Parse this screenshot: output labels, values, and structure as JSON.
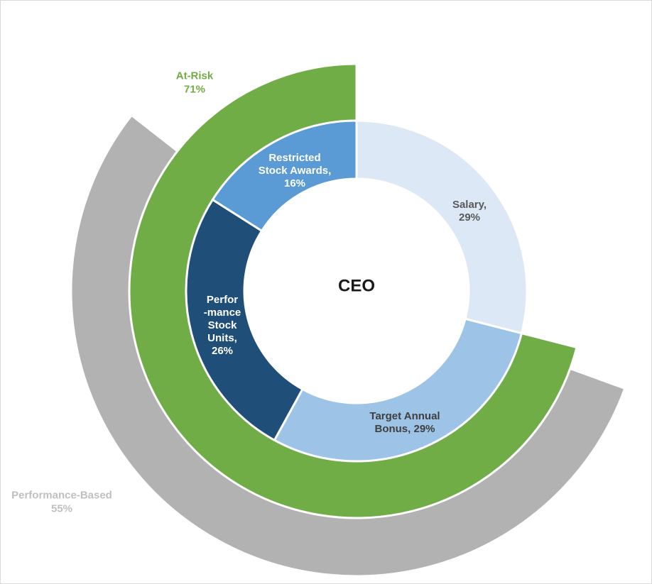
{
  "chart_data": {
    "type": "pie",
    "title": "",
    "center_label": "CEO",
    "inner_ring": {
      "slices": [
        {
          "name": "Salary",
          "value": 29,
          "label_lines": [
            "Salary,",
            "29%"
          ],
          "color": "#dce8f5",
          "text_color": "#595959"
        },
        {
          "name": "Target Annual Bonus",
          "value": 29,
          "label_lines": [
            "Target Annual",
            "Bonus, 29%"
          ],
          "color": "#9dc3e6",
          "text_color": "#404040"
        },
        {
          "name": "Performance Stock Units",
          "value": 26,
          "label_lines": [
            "Perfor",
            "-mance",
            "Stock",
            "Units,",
            "26%"
          ],
          "color": "#1f4e79",
          "text_color": "#ffffff"
        },
        {
          "name": "Restricted Stock Awards",
          "value": 16,
          "label_lines": [
            "Restricted",
            "Stock Awards,",
            "16%"
          ],
          "color": "#5b9bd5",
          "text_color": "#ffffff"
        }
      ]
    },
    "middle_ring": {
      "name": "At-Risk",
      "value": 71,
      "label_lines": [
        "At-Risk",
        "71%"
      ],
      "color": "#70ad47"
    },
    "outer_ring": {
      "name": "Performance-Based",
      "value": 55,
      "label_lines": [
        "Performance-Based",
        "55%"
      ],
      "color": "#b2b2b2",
      "label_color": "#bfbfbf"
    }
  }
}
